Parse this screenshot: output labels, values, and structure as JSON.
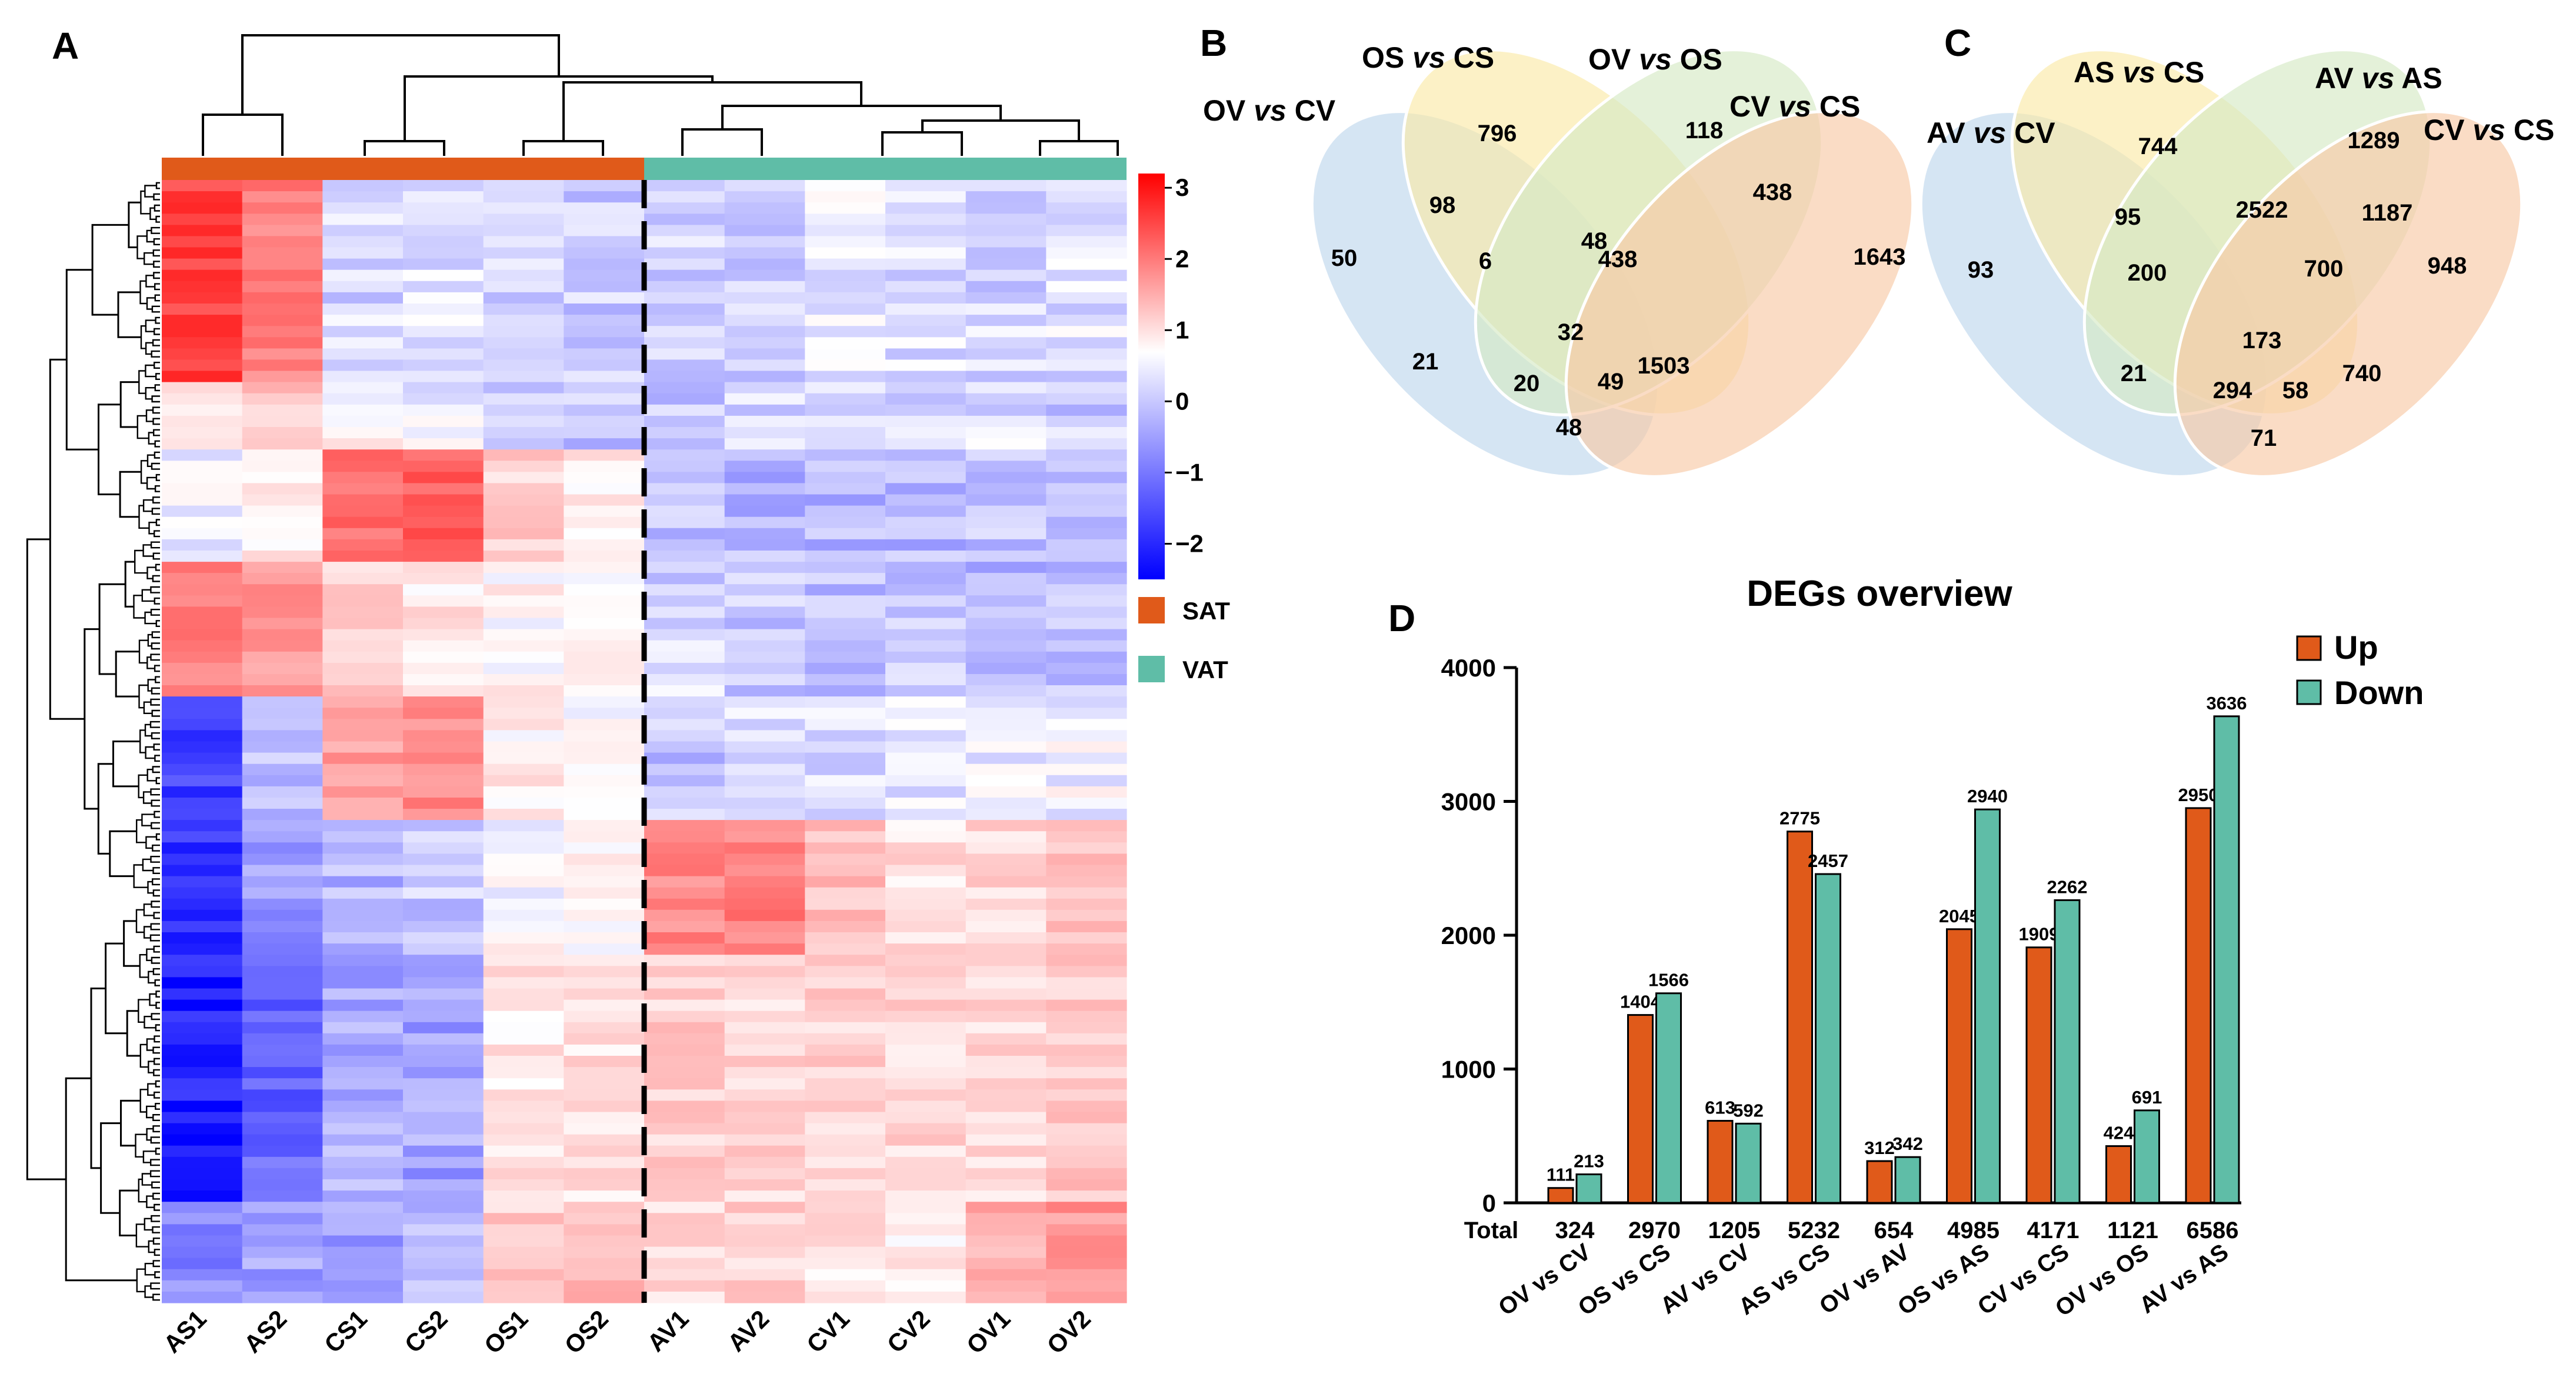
{
  "panel_labels": {
    "a": "A",
    "b": "B",
    "c": "C",
    "d": "D"
  },
  "colors": {
    "sat": "#e05a1a",
    "vat": "#5fbda7",
    "up": "#e05a1a",
    "down": "#5fbda7",
    "venn_blue": "#c7dcef",
    "venn_yellow": "#fbe9a8",
    "venn_green": "#d6eac4",
    "venn_orange": "#f7c9a6"
  },
  "chart_data": [
    {
      "type": "heatmap",
      "panel": "A",
      "samples": [
        "AS1",
        "AS2",
        "CS1",
        "CS2",
        "OS1",
        "OS2",
        "AV1",
        "AV2",
        "CV1",
        "CV2",
        "OV1",
        "OV2"
      ],
      "groups": [
        {
          "name": "SAT",
          "samples": [
            "AS1",
            "AS2",
            "CS1",
            "CS2",
            "OS1",
            "OS2"
          ]
        },
        {
          "name": "VAT",
          "samples": [
            "AV1",
            "AV2",
            "CV1",
            "CV2",
            "OV1",
            "OV2"
          ]
        }
      ],
      "colorbar": {
        "ticks": [
          3,
          2,
          1,
          0,
          -1,
          -2
        ],
        "tick_labels": [
          "3",
          "2",
          "1",
          "0",
          "−1",
          "−2"
        ],
        "range": [
          -2.5,
          3.2
        ]
      },
      "legend": [
        "SAT",
        "VAT"
      ],
      "row_blocks": [
        {
          "rows": 18,
          "values": [
            2.4,
            1.6,
            -0.4,
            -0.3,
            -0.5,
            -0.5,
            -0.4,
            -0.5,
            -0.2,
            -0.3,
            -0.4,
            -0.3
          ]
        },
        {
          "rows": 6,
          "values": [
            0.4,
            0.7,
            0.1,
            -0.2,
            -0.5,
            -0.6,
            -0.6,
            -0.4,
            -0.5,
            -0.4,
            -0.3,
            -0.5
          ]
        },
        {
          "rows": 10,
          "values": [
            -0.2,
            0.3,
            1.8,
            2.0,
            0.6,
            0.3,
            -0.6,
            -0.7,
            -0.7,
            -0.7,
            -0.6,
            -0.6
          ]
        },
        {
          "rows": 12,
          "values": [
            1.6,
            1.3,
            0.6,
            0.3,
            0.1,
            0.2,
            -0.4,
            -0.5,
            -0.6,
            -0.5,
            -0.7,
            -0.6
          ]
        },
        {
          "rows": 11,
          "values": [
            -1.9,
            -0.6,
            1.2,
            1.5,
            0.2,
            0.1,
            -0.6,
            -0.4,
            -0.3,
            -0.3,
            -0.2,
            -0.1
          ]
        },
        {
          "rows": 12,
          "values": [
            -2.0,
            -1.0,
            -0.7,
            -0.5,
            0.0,
            0.1,
            1.5,
            1.6,
            0.8,
            0.4,
            0.5,
            0.7
          ]
        },
        {
          "rows": 22,
          "values": [
            -2.2,
            -1.5,
            -0.8,
            -0.9,
            0.3,
            0.4,
            0.6,
            0.5,
            0.6,
            0.5,
            0.5,
            0.7
          ]
        },
        {
          "rows": 9,
          "values": [
            -1.2,
            -0.9,
            -0.9,
            -0.7,
            0.6,
            0.8,
            0.5,
            0.6,
            0.3,
            0.2,
            1.0,
            1.3
          ]
        }
      ]
    },
    {
      "type": "venn",
      "panel": "B",
      "sets": [
        "OV vs CV",
        "OS vs CS",
        "OV vs OS",
        "CV vs CS"
      ],
      "set_labels": [
        {
          "a": "OV ",
          "b": "vs",
          "c": " CV"
        },
        {
          "a": "OS ",
          "b": "vs",
          "c": " CS"
        },
        {
          "a": "OV ",
          "b": "vs",
          "c": " OS"
        },
        {
          "a": "CV ",
          "b": "vs",
          "c": " CS"
        }
      ],
      "regions": {
        "only_set1": "50",
        "only_set2": "796",
        "only_set3": "118",
        "only_set4": "1643",
        "set1_set2": "98",
        "set2_set3": "48",
        "set3_set4": "438",
        "set1_set2_set3": "6",
        "set2_set3_set4": "438",
        "set1_set3": "21",
        "set2_set4": "1503",
        "all_four": "32",
        "set1_set3_set4": "20",
        "set1_set2_set4": "49",
        "set1_set4": "48"
      }
    },
    {
      "type": "venn",
      "panel": "C",
      "sets": [
        "AV vs CV",
        "AS vs CS",
        "AV vs AS",
        "CV vs CS"
      ],
      "set_labels": [
        {
          "a": "AV ",
          "b": "vs",
          "c": " CV"
        },
        {
          "a": "AS ",
          "b": "vs",
          "c": " CS"
        },
        {
          "a": "AV ",
          "b": "vs",
          "c": " AS"
        },
        {
          "a": "CV ",
          "b": "vs",
          "c": " CS"
        }
      ],
      "regions": {
        "only_set1": "93",
        "only_set2": "744",
        "only_set3": "1289",
        "only_set4": "948",
        "set1_set2": "95",
        "set2_set3": "2522",
        "set3_set4": "1187",
        "set1_set2_set3": "200",
        "set2_set3_set4": "700",
        "set1_set3": "21",
        "set2_set4": "740",
        "all_four": "173",
        "set1_set3_set4": "294",
        "set1_set2_set4": "58",
        "set1_set4": "71"
      }
    },
    {
      "type": "bar",
      "panel": "D",
      "title": "DEGs overview",
      "categories": [
        "OV vs CV",
        "OS vs CS",
        "AV vs CV",
        "AS vs CS",
        "OV vs AV",
        "OS vs AS",
        "CV vs CS",
        "OV vs OS",
        "AV vs AS"
      ],
      "series": [
        {
          "name": "Up",
          "values": [
            111,
            1404,
            613,
            2775,
            312,
            2045,
            1909,
            424,
            2950
          ]
        },
        {
          "name": "Down",
          "values": [
            213,
            1566,
            592,
            2457,
            342,
            2940,
            2262,
            691,
            3636
          ]
        }
      ],
      "totals_label": "Total",
      "totals": [
        324,
        2970,
        1205,
        5232,
        654,
        4985,
        4171,
        1121,
        6586
      ],
      "ylim": [
        0,
        4000
      ],
      "yticks": [
        0,
        1000,
        2000,
        3000,
        4000
      ],
      "legend_position": "top-right",
      "xlabel": "",
      "ylabel": ""
    }
  ]
}
